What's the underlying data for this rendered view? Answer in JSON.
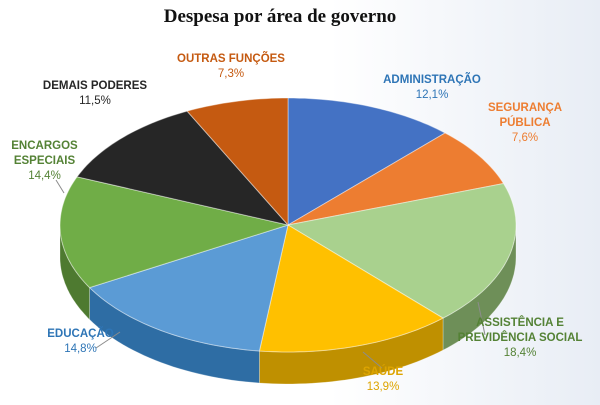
{
  "chart_data": {
    "type": "pie",
    "title": "Despesa por área de governo",
    "slices": [
      {
        "label": "ADMINISTRAÇÃO",
        "value_label": "12,1%",
        "value": 12.1,
        "color": "#4472C4",
        "side_color": "#2F5597",
        "label_color": "#2E75B6"
      },
      {
        "label": "SEGURANÇA\nPÚBLICA",
        "value_label": "7,6%",
        "value": 7.6,
        "color": "#ED7D31",
        "side_color": "#B85D20",
        "label_color": "#ED7D31"
      },
      {
        "label": "ASSISTÊNCIA E\nPREVIDÊNCIA SOCIAL",
        "value_label": "18,4%",
        "value": 18.4,
        "color": "#A9D18E",
        "side_color": "#6E8F58",
        "label_color": "#548235"
      },
      {
        "label": "SAÚDE",
        "value_label": "13,9%",
        "value": 13.9,
        "color": "#FFC000",
        "side_color": "#BF9000",
        "label_color": "#DDA400"
      },
      {
        "label": "EDUCAÇÃO",
        "value_label": "14,8%",
        "value": 14.8,
        "color": "#5B9BD5",
        "side_color": "#2E6DA4",
        "label_color": "#2E75B6"
      },
      {
        "label": "ENCARGOS\nESPECIAIS",
        "value_label": "14,4%",
        "value": 14.4,
        "color": "#70AD47",
        "side_color": "#4E7A30",
        "label_color": "#548235"
      },
      {
        "label": "DEMAIS PODERES",
        "value_label": "11,5%",
        "value": 11.5,
        "color": "#262626",
        "side_color": "#111111",
        "label_color": "#262626"
      },
      {
        "label": "OUTRAS FUNÇÕES",
        "value_label": "7,3%",
        "value": 7.3,
        "color": "#C55A11",
        "side_color": "#8A3E0B",
        "label_color": "#C55A11"
      }
    ]
  }
}
